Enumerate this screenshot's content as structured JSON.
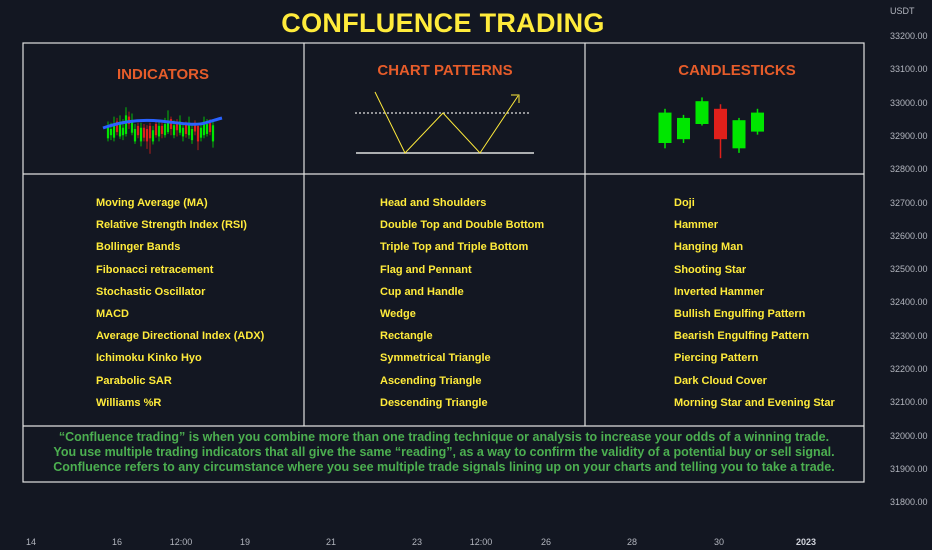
{
  "title": "CONFLUENCE TRADING",
  "sections": {
    "indicators": {
      "header": "INDICATORS",
      "items": [
        "Moving Average (MA)",
        "Relative Strength Index (RSI)",
        "Bollinger Bands",
        "Fibonacci retracement",
        "Stochastic Oscillator",
        "MACD",
        "Average Directional Index (ADX)",
        "Ichimoku Kinko Hyo",
        "Parabolic SAR",
        "Williams %R"
      ]
    },
    "chart_patterns": {
      "header": "CHART PATTERNS",
      "items": [
        "Head and Shoulders",
        "Double Top and Double Bottom",
        "Triple Top and Triple Bottom",
        "Flag and Pennant",
        "Cup and Handle",
        "Wedge",
        "Rectangle",
        "Symmetrical Triangle",
        "Ascending Triangle",
        "Descending Triangle"
      ]
    },
    "candlesticks": {
      "header": "CANDLESTICKS",
      "items": [
        "Doji",
        "Hammer",
        "Hanging Man",
        "Shooting Star",
        "Inverted Hammer",
        "Bullish Engulfing Pattern",
        "Bearish Engulfing Pattern",
        "Piercing Pattern",
        "Dark Cloud Cover",
        "Morning Star and Evening Star"
      ]
    }
  },
  "description": {
    "line1": "“Confluence trading” is when you combine more than one trading technique or analysis to increase your odds of a winning trade.",
    "line2": "You use multiple trading indicators that all give the same “reading”, as a way to confirm the validity of a potential buy or sell signal.",
    "line3": "Confluence refers to any circumstance where you see multiple trade signals lining up on your charts and telling you to take a trade."
  },
  "colors": {
    "background": "#131722",
    "title": "#ffeb3b",
    "header": "#e65c2a",
    "list_text": "#ffeb3b",
    "description": "#4caf50",
    "bull": "#00e600",
    "bear": "#e0201b",
    "ma_line": "#2962ff"
  },
  "chart_data": {
    "type": "table",
    "y_axis": {
      "unit": "USDT",
      "ticks": [
        "33200.00",
        "33100.00",
        "33000.00",
        "32900.00",
        "32800.00",
        "32700.00",
        "32600.00",
        "32500.00",
        "32400.00",
        "32300.00",
        "32200.00",
        "32100.00",
        "32000.00",
        "31900.00",
        "31800.00"
      ]
    },
    "x_axis": {
      "ticks": [
        "14",
        "16",
        "12:00",
        "19",
        "21",
        "23",
        "12:00",
        "26",
        "28",
        "30",
        "2023"
      ]
    },
    "columns": [
      "INDICATORS",
      "CHART PATTERNS",
      "CANDLESTICKS"
    ],
    "candlesticks_illustration": [
      {
        "open": 0.25,
        "close": 0.65,
        "high": 0.7,
        "low": 0.18,
        "dir": "up"
      },
      {
        "open": 0.3,
        "close": 0.58,
        "high": 0.62,
        "low": 0.25,
        "dir": "up"
      },
      {
        "open": 0.5,
        "close": 0.8,
        "high": 0.85,
        "low": 0.48,
        "dir": "up"
      },
      {
        "open": 0.3,
        "close": 0.7,
        "high": 0.76,
        "low": 0.05,
        "dir": "down"
      },
      {
        "open": 0.18,
        "close": 0.55,
        "high": 0.58,
        "low": 0.12,
        "dir": "up"
      },
      {
        "open": 0.4,
        "close": 0.65,
        "high": 0.7,
        "low": 0.36,
        "dir": "up"
      }
    ]
  }
}
